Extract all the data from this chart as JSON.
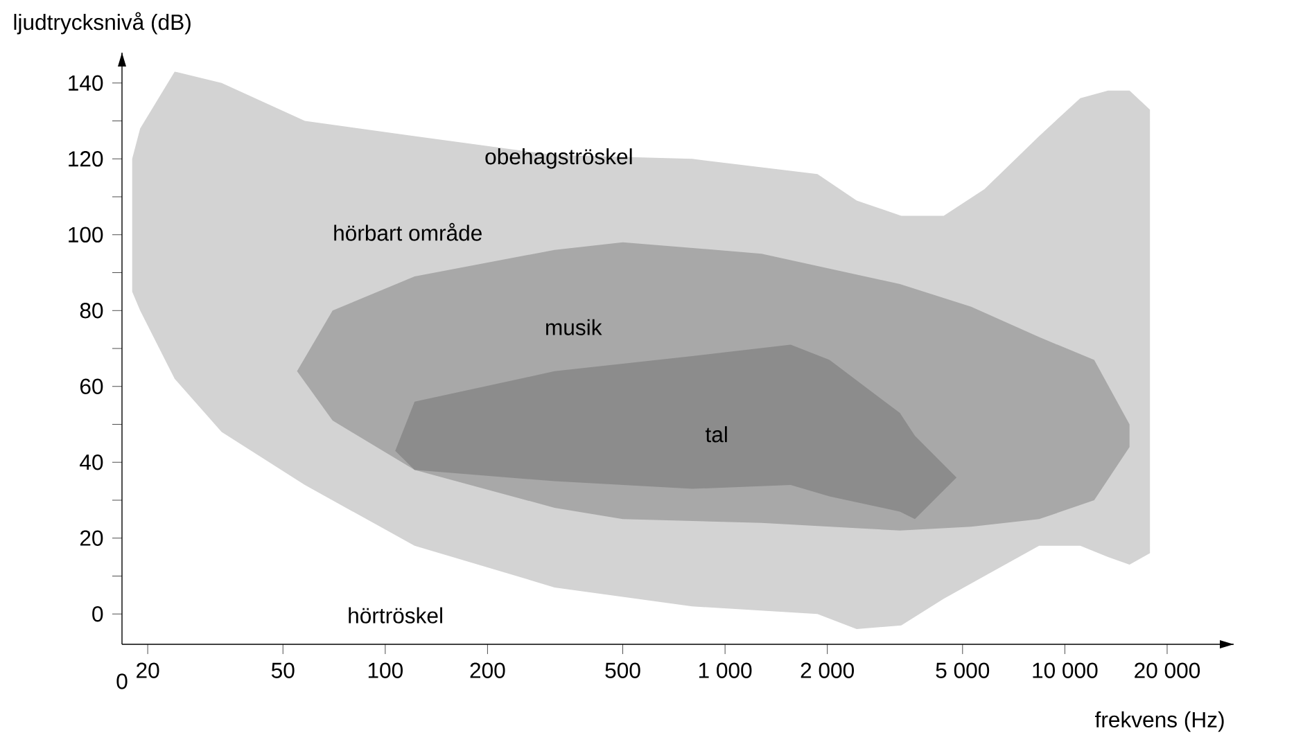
{
  "chart_data": {
    "type": "area",
    "log": "x",
    "xlabel": "frekvens (Hz)",
    "ylabel": "ljudtrycksnivå (dB)",
    "xlim": [
      16.8,
      31400
    ],
    "ylim": [
      -8,
      148
    ],
    "xticks": [
      20,
      50,
      100,
      200,
      500,
      {
        "value": 1000,
        "label": "1 000"
      },
      {
        "value": 2000,
        "label": "2 000"
      },
      {
        "value": 5000,
        "label": "5 000"
      },
      {
        "value": 10000,
        "label": "10 000"
      },
      {
        "value": 20000,
        "label": "20 000"
      }
    ],
    "yticks": [
      0,
      {
        "value": 10,
        "label": null
      },
      20,
      {
        "value": 30,
        "label": null
      },
      40,
      {
        "value": 50,
        "label": null
      },
      60,
      {
        "value": 70,
        "label": null
      },
      80,
      {
        "value": 90,
        "label": null
      },
      100,
      {
        "value": 110,
        "label": null
      },
      120,
      {
        "value": 130,
        "label": null
      },
      140
    ],
    "series": [
      {
        "color": "#d3d3d3",
        "x": [
          18,
          19,
          24,
          33,
          58,
          122,
          315,
          800,
          1870,
          2440,
          3300,
          4400,
          5800,
          8400,
          11100,
          13400,
          15500,
          17800,
          17800,
          15500,
          13400,
          11100,
          8400,
          5800,
          4400,
          3300,
          2440,
          1870,
          800,
          315,
          122,
          58,
          33,
          24,
          19,
          18
        ],
        "values": [
          120,
          128,
          143,
          140,
          130,
          126,
          121,
          120,
          116,
          109,
          105,
          105,
          112,
          126,
          136,
          138,
          138,
          133,
          16,
          13,
          15,
          18,
          18,
          10,
          4,
          -3,
          -4,
          0,
          2,
          7,
          18,
          34,
          48,
          62,
          80,
          85
        ]
      },
      {
        "color": "#a8a8a8",
        "x": [
          55,
          70,
          122,
          315,
          500,
          1280,
          3270,
          5300,
          8400,
          12200,
          15500,
          15500,
          12200,
          8400,
          5300,
          3270,
          1280,
          500,
          315,
          122,
          70
        ],
        "values": [
          64,
          80,
          89,
          96,
          98,
          95,
          87,
          81,
          73,
          67,
          50,
          44,
          30,
          25,
          23,
          22,
          24,
          25,
          28,
          38,
          51
        ]
      },
      {
        "color": "#8c8c8c",
        "x": [
          107,
          122,
          315,
          800,
          1560,
          2030,
          3270,
          3620,
          4800,
          3620,
          3270,
          2030,
          1560,
          800,
          315,
          122
        ],
        "values": [
          43,
          56,
          64,
          68,
          71,
          67,
          53,
          47,
          36,
          25,
          27,
          31,
          34,
          33,
          35,
          38
        ]
      }
    ],
    "annotations": [
      "0",
      "obehagströskel",
      "hörbart område",
      "musik",
      "tal",
      "hörtröskel"
    ]
  }
}
